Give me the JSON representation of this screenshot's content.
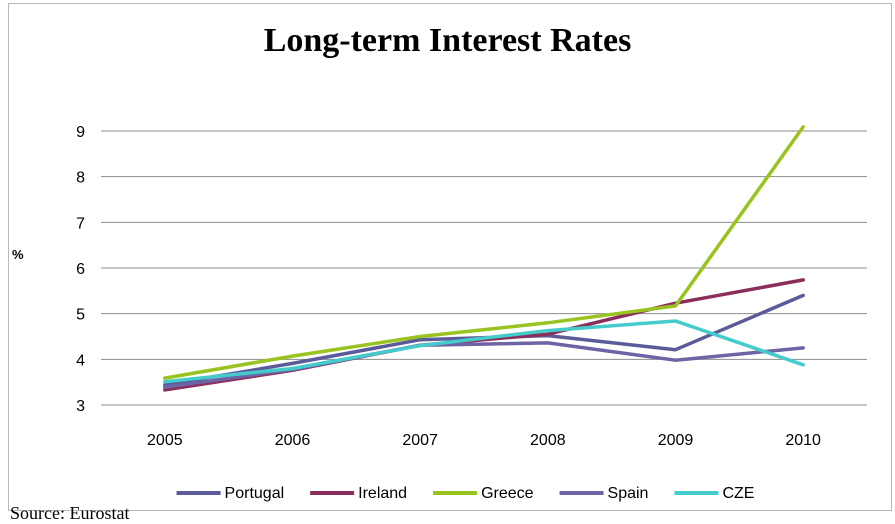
{
  "chart_data": {
    "type": "line",
    "title": "Long-term Interest Rates",
    "ylabel": "%",
    "xlabel": "",
    "source": "Source: Eurostat",
    "categories": [
      "2005",
      "2006",
      "2007",
      "2008",
      "2009",
      "2010"
    ],
    "ylim": [
      3,
      9
    ],
    "yticks": [
      3,
      4,
      5,
      6,
      7,
      8,
      9
    ],
    "grid": "horizontal",
    "legend_position": "bottom",
    "series": [
      {
        "name": "Portugal",
        "color": "#5b5b9a",
        "values": [
          3.44,
          3.91,
          4.43,
          4.52,
          4.21,
          5.4
        ]
      },
      {
        "name": "Ireland",
        "color": "#8b2e5c",
        "values": [
          3.33,
          3.76,
          4.31,
          4.55,
          5.23,
          5.74
        ]
      },
      {
        "name": "Greece",
        "color": "#99c31e",
        "values": [
          3.59,
          4.07,
          4.5,
          4.8,
          5.17,
          9.09
        ]
      },
      {
        "name": "Spain",
        "color": "#6e63a5",
        "values": [
          3.39,
          3.78,
          4.31,
          4.36,
          3.98,
          4.25
        ]
      },
      {
        "name": "CZE",
        "color": "#44cccc",
        "values": [
          3.51,
          3.8,
          4.3,
          4.63,
          4.84,
          3.88
        ]
      }
    ]
  }
}
